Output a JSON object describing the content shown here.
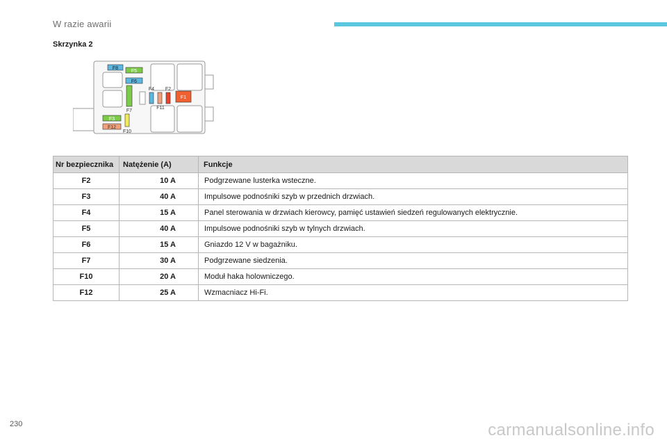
{
  "header": {
    "section_title": "W razie awarii",
    "accent_color": "#5bc8e0"
  },
  "subheading": "Skrzynka 2",
  "diagram": {
    "labels": {
      "f8": "F8",
      "f5": "F5",
      "f6": "F6",
      "f4": "F4",
      "f2": "F2",
      "f1": "F1",
      "f7": "F7",
      "f11": "F11",
      "f3": "F3",
      "f12": "F12",
      "f10": "F10"
    },
    "colors": {
      "blue": "#5bb7e0",
      "green": "#7ecb4a",
      "salmon": "#f0a07a",
      "red": "#e8432e",
      "orange": "#f06030",
      "yellow": "#f2ea58"
    }
  },
  "table": {
    "headers": {
      "nr": "Nr bezpiecznika",
      "amp": "Natężenie (A)",
      "fn": "Funkcje"
    },
    "rows": [
      {
        "nr": "F2",
        "amp": "10 A",
        "fn": "Podgrzewane lusterka wsteczne."
      },
      {
        "nr": "F3",
        "amp": "40 A",
        "fn": "Impulsowe podnośniki szyb w przednich drzwiach."
      },
      {
        "nr": "F4",
        "amp": "15 A",
        "fn": "Panel sterowania w drzwiach kierowcy, pamięć ustawień siedzeń regulowanych elektrycznie."
      },
      {
        "nr": "F5",
        "amp": "40 A",
        "fn": "Impulsowe podnośniki szyb w tylnych drzwiach."
      },
      {
        "nr": "F6",
        "amp": "15 A",
        "fn": "Gniazdo 12 V w bagażniku."
      },
      {
        "nr": "F7",
        "amp": "30 A",
        "fn": "Podgrzewane siedzenia."
      },
      {
        "nr": "F10",
        "amp": "20 A",
        "fn": "Moduł haka holowniczego."
      },
      {
        "nr": "F12",
        "amp": "25 A",
        "fn": "Wzmacniacz Hi-Fi."
      }
    ]
  },
  "footer": {
    "page_number": "230",
    "watermark": "carmanualsonline.info"
  }
}
